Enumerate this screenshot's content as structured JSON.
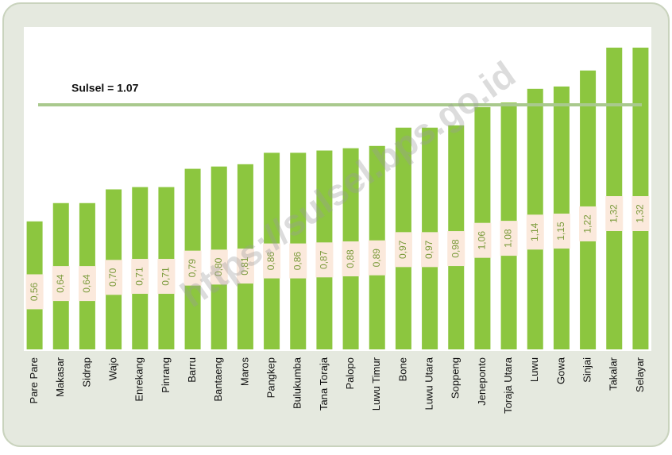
{
  "chart_data": {
    "type": "bar",
    "categories": [
      "Pare Pare",
      "Makasar",
      "Sidrap",
      "Wajo",
      "Enrekang",
      "Pinrang",
      "Barru",
      "Bantaeng",
      "Maros",
      "Pangkep",
      "Bulukumba",
      "Tana Toraja",
      "Palopo",
      "Luwu Timur",
      "Bone",
      "Luwu Utara",
      "Soppeng",
      "Jeneponto",
      "Toraja Utara",
      "Luwu",
      "Gowa",
      "Sinjai",
      "Takalar",
      "Selayar"
    ],
    "values": [
      0.56,
      0.64,
      0.64,
      0.7,
      0.71,
      0.71,
      0.79,
      0.8,
      0.81,
      0.86,
      0.86,
      0.87,
      0.88,
      0.89,
      0.97,
      0.97,
      0.98,
      1.06,
      1.08,
      1.14,
      1.15,
      1.22,
      1.32,
      1.32
    ],
    "value_labels": [
      "0,56",
      "0,64",
      "0,64",
      "0,70",
      "0,71",
      "0,71",
      "0,79",
      "0,80",
      "0,81",
      "0,86",
      "0,86",
      "0,87",
      "0,88",
      "0,89",
      "0,97",
      "0,97",
      "0,98",
      "1,06",
      "1,08",
      "1,14",
      "1,15",
      "1,22",
      "1,32",
      "1,32"
    ],
    "color": "#8cc63f",
    "ylim": [
      0,
      1.32
    ],
    "reference_line": {
      "label": "Sulsel = 1.07",
      "value": 1.07,
      "color": "#a9c98d"
    },
    "watermark": "https://sulsel.bps.go.id"
  }
}
